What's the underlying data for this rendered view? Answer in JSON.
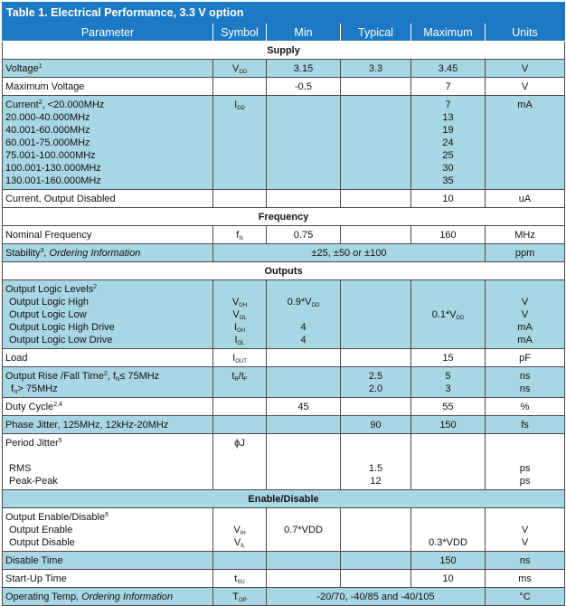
{
  "title": "Table 1. Electrical Performance, 3.3 V option",
  "headers": {
    "parameter": "Parameter",
    "symbol": "Symbol",
    "min": "Min",
    "typical": "Typical",
    "maximum": "Maximum",
    "units": "Units"
  },
  "sections": {
    "supply": "Supply",
    "frequency": "Frequency",
    "outputs": "Outputs",
    "enable": "Enable/Disable"
  },
  "rows": {
    "voltage": {
      "param": "Voltage",
      "fn": "1",
      "sym": "V",
      "sub": "DD",
      "min": "3.15",
      "typ": "3.3",
      "max": "3.45",
      "units": "V"
    },
    "maxvoltage": {
      "param": "Maximum Voltage",
      "min": "-0.5",
      "max": "7",
      "units": "V"
    },
    "current": {
      "param": "Current",
      "fn": "2",
      "suffix": ", <20.000MHz",
      "sym": "I",
      "sub": "DD",
      "units": "mA",
      "lines": [
        "20.000-40.000MHz",
        "40.001-60.000MHz",
        "60.001-75.000MHz",
        "75.001-100.000MHz",
        "100.001-130.000MHz",
        "130.001-160.000MHz"
      ],
      "max": [
        "7",
        "13",
        "19",
        "24",
        "25",
        "30",
        "35"
      ]
    },
    "current_disabled": {
      "param": "Current, Output Disabled",
      "max": "10",
      "units": "uA"
    },
    "nominal_freq": {
      "param": "Nominal Frequency",
      "sym": "f",
      "sub": "N",
      "min": "0.75",
      "max": "160",
      "units": "MHz"
    },
    "stability": {
      "param": "Stability",
      "fn": "3",
      "param_italic": ", Ordering Information",
      "value": "±25, ±50 or ±100",
      "units": "ppm"
    },
    "logic": {
      "param": "Output Logic Levels",
      "fn": "2",
      "items": [
        {
          "label": "Output Logic High",
          "sym": "V",
          "sub": "OH",
          "min": "0.9*V",
          "min_sub": "DD",
          "max": "",
          "max_sub": "",
          "units": "V"
        },
        {
          "label": "Output Logic Low",
          "sym": "V",
          "sub": "OL",
          "min": "",
          "min_sub": "",
          "max": "0.1*V",
          "max_sub": "DD",
          "units": "V"
        },
        {
          "label": "Output Logic High Drive",
          "sym": "I",
          "sub": "OH",
          "min": "4",
          "min_sub": "",
          "max": "",
          "max_sub": "",
          "units": "mA"
        },
        {
          "label": "Output Logic Low Drive",
          "sym": "I",
          "sub": "OL",
          "min": "4",
          "min_sub": "",
          "max": "",
          "max_sub": "",
          "units": "mA"
        }
      ]
    },
    "load": {
      "param": "Load",
      "sym": "I",
      "sub": "OUT",
      "max": "15",
      "units": "pF"
    },
    "rise": {
      "param": "Output Rise /Fall Time",
      "fn": "2",
      "cond1": ", f",
      "cond1_sub": "N",
      "cond1_tail": "≤ 75MHz",
      "line2": "f",
      "line2_sub": "N",
      "line2_tail": "> 75MHz",
      "sym1": "t",
      "sym1_sub": "R",
      "sym2": "/t",
      "sym2_sub": "F",
      "typ": [
        "2.5",
        "2.0"
      ],
      "max": [
        "5",
        "3"
      ],
      "units": [
        "ns",
        "ns"
      ]
    },
    "duty": {
      "param": "Duty Cycle",
      "fn": "2,4",
      "min": "45",
      "max": "55",
      "units": "%"
    },
    "phase_jitter": {
      "param": "Phase Jitter, 125MHz, 12kHz-20MHz",
      "typ": "90",
      "max": "150",
      "units": "fs"
    },
    "period_jitter": {
      "param": "Period Jitter",
      "fn": "5",
      "sym": "ϕJ",
      "lines": [
        "RMS",
        "Peak-Peak"
      ],
      "typ": [
        "1.5",
        "12"
      ],
      "units": [
        "ps",
        "ps"
      ]
    },
    "enable": {
      "param": "Output Enable/Disable",
      "fn": "6",
      "items": [
        {
          "label": "Output Enable",
          "sym": "V",
          "sub": "IH",
          "min": "0.7*VDD",
          "max": "",
          "units": "V"
        },
        {
          "label": "Output Disable",
          "sym": "V",
          "sub": "IL",
          "min": "",
          "max": "0.3*VDD",
          "units": "V"
        }
      ]
    },
    "disable_time": {
      "param": "Disable Time",
      "max": "150",
      "units": "ns"
    },
    "startup": {
      "param": "Start-Up Time",
      "sym": "t",
      "sub": "SU",
      "max": "10",
      "units": "ms"
    },
    "optemp": {
      "param": "Operating Temp",
      "param_italic": ", Ordering Information",
      "sym": "T",
      "sub": "OP",
      "value": "-20/70, -40/85 and -40/105",
      "units": "°C"
    }
  }
}
